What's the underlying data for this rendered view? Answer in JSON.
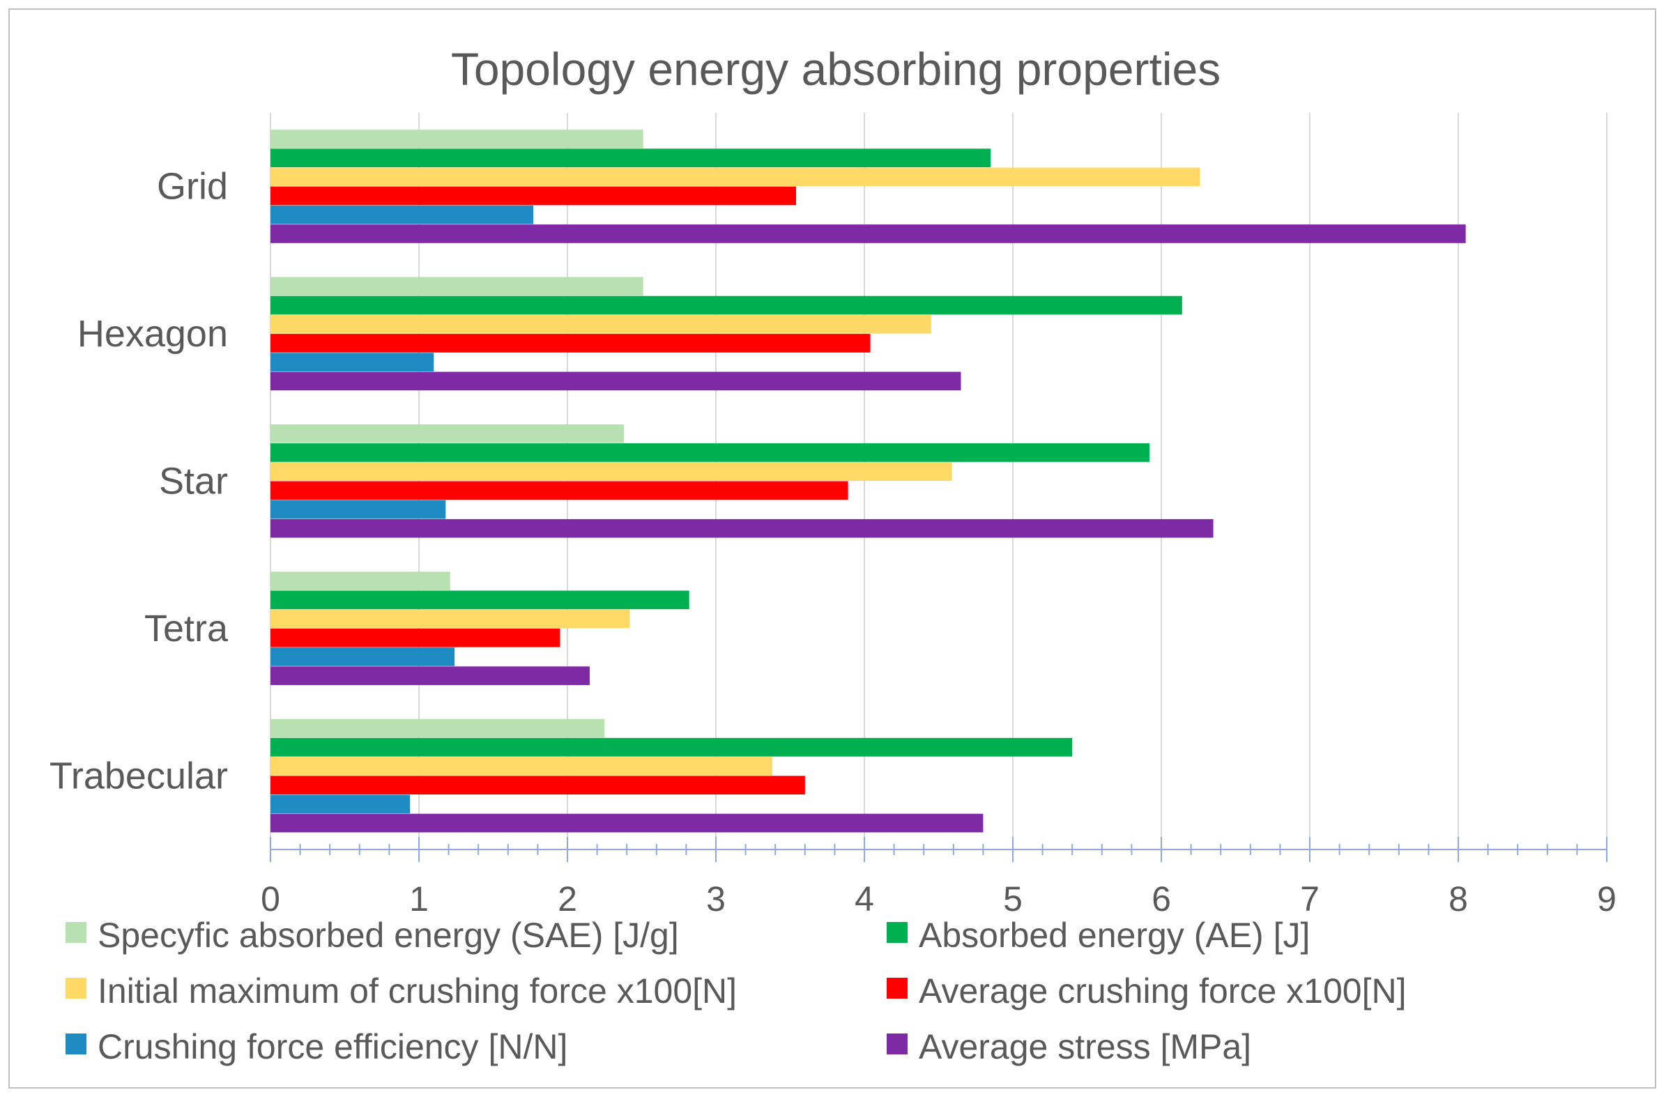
{
  "chart_data": {
    "type": "bar",
    "orientation": "horizontal",
    "title": "Topology energy absorbing properties",
    "categories": [
      "Grid",
      "Hexagon",
      "Star",
      "Tetra",
      "Trabecular"
    ],
    "xlim": [
      0,
      9
    ],
    "ticks": [
      "0",
      "1",
      "2",
      "3",
      "4",
      "5",
      "6",
      "7",
      "8",
      "9"
    ],
    "grid": true,
    "legend_position": "bottom",
    "series": [
      {
        "name": "Specyfic absorbed energy (SAE) [J/g]",
        "color": "#b8e0b0",
        "values": [
          2.51,
          2.51,
          2.38,
          1.21,
          2.25
        ]
      },
      {
        "name": "Absorbed energy (AE) [J]",
        "color": "#00b050",
        "values": [
          4.85,
          6.14,
          5.92,
          2.82,
          5.4
        ]
      },
      {
        "name": "Initial maximum of crushing force x100[N]",
        "color": "#ffd966",
        "values": [
          6.26,
          4.45,
          4.59,
          2.42,
          3.38
        ]
      },
      {
        "name": "Average crushing force x100[N]",
        "color": "#ff0000",
        "values": [
          3.54,
          4.04,
          3.89,
          1.95,
          3.6
        ]
      },
      {
        "name": "Crushing force efficiency [N/N]",
        "color": "#1e8bc3",
        "values": [
          1.77,
          1.1,
          1.18,
          1.24,
          0.94
        ]
      },
      {
        "name": "Average stress [MPa]",
        "color": "#7f2aa5",
        "values": [
          8.05,
          4.65,
          6.35,
          2.15,
          4.8
        ]
      }
    ]
  }
}
